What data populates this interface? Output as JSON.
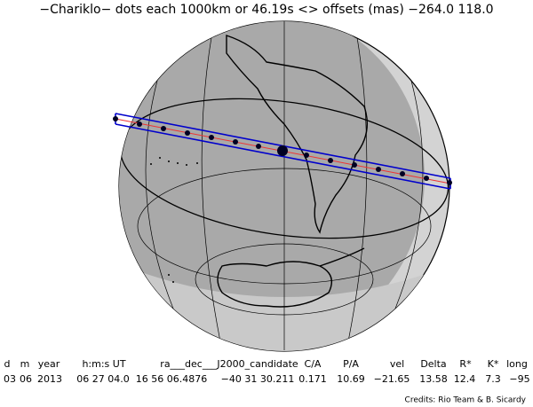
{
  "title": "−Chariklo− dots each 1000km or 46.19s <> offsets (mas) −264.0  118.0",
  "table": {
    "header": [
      "d",
      "m",
      "year",
      "h:m:s UT",
      "ra___dec___J2000_candidate",
      "C/A",
      "P/A",
      "vel",
      "Delta",
      "R*",
      "K*",
      "long"
    ],
    "row": [
      "03",
      "06",
      "2013",
      "06 27 04.0",
      "16 56 06.4876",
      "−40 31 30.211",
      "0.171",
      "10.69",
      "−21.65",
      "13.58",
      "12.4",
      "7.3",
      "−95"
    ]
  },
  "credits": "Credits: Rio Team & B. Sicardy"
}
